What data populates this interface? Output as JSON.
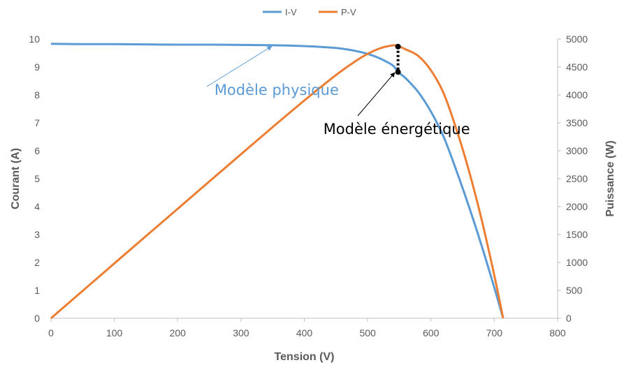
{
  "chart_data": {
    "type": "line",
    "legend": {
      "position": "top",
      "entries": [
        "I-V",
        "P-V"
      ]
    },
    "xlabel": "Tension (V)",
    "ylabel_left": "Courant (A)",
    "ylabel_right": "Puissance (W)",
    "xlim": [
      0,
      800
    ],
    "ylim_left": [
      0,
      10
    ],
    "ylim_right": [
      0,
      5000
    ],
    "x_ticks": [
      "0",
      "100",
      "200",
      "300",
      "400",
      "500",
      "600",
      "700",
      "800"
    ],
    "y_left_ticks": [
      "0",
      "1",
      "2",
      "3",
      "4",
      "5",
      "6",
      "7",
      "8",
      "9",
      "10"
    ],
    "y_right_ticks": [
      "0",
      "500",
      "1000",
      "1500",
      "2000",
      "2500",
      "3000",
      "3500",
      "4000",
      "4500",
      "5000"
    ],
    "grid": "none",
    "series": [
      {
        "name": "I-V",
        "axis": "left",
        "color": "#5b9bd5",
        "x": [
          0,
          50,
          100,
          150,
          200,
          250,
          300,
          350,
          400,
          450,
          480,
          500,
          520,
          540,
          548,
          560,
          580,
          600,
          620,
          640,
          660,
          680,
          700,
          714
        ],
        "y": [
          9.83,
          9.82,
          9.82,
          9.81,
          9.8,
          9.8,
          9.79,
          9.78,
          9.75,
          9.68,
          9.58,
          9.47,
          9.3,
          9.05,
          8.82,
          8.6,
          8.1,
          7.4,
          6.5,
          5.3,
          4.0,
          2.6,
          1.1,
          0
        ]
      },
      {
        "name": "P-V",
        "axis": "right",
        "color": "#ed7d31",
        "x": [
          0,
          50,
          100,
          150,
          200,
          250,
          300,
          350,
          400,
          450,
          480,
          500,
          520,
          540,
          548,
          560,
          580,
          600,
          620,
          640,
          660,
          680,
          700,
          714
        ],
        "y": [
          0,
          491,
          982,
          1472,
          1960,
          2450,
          2937,
          3423,
          3900,
          4356,
          4598,
          4735,
          4836,
          4887,
          4875,
          4816,
          4698,
          4440,
          4030,
          3392,
          2640,
          1768,
          770,
          0
        ]
      }
    ],
    "annotations": [
      {
        "text": "Modèle physique",
        "color": "#5b9bd5",
        "x": 258,
        "y": 8.0,
        "arrow_to": {
          "x": 300,
          "y": 9.79,
          "axis": "left"
        }
      },
      {
        "text": "Modèle énergétique",
        "color": "#000000",
        "x": 430,
        "y": 6.6,
        "arrow_to": {
          "x": 545,
          "y": 8.6,
          "axis": "left"
        }
      }
    ],
    "markers": [
      {
        "x": 548,
        "y_left": 9.73,
        "color": "#000000"
      },
      {
        "x": 548,
        "y_left": 8.82,
        "color": "#000000"
      }
    ]
  }
}
